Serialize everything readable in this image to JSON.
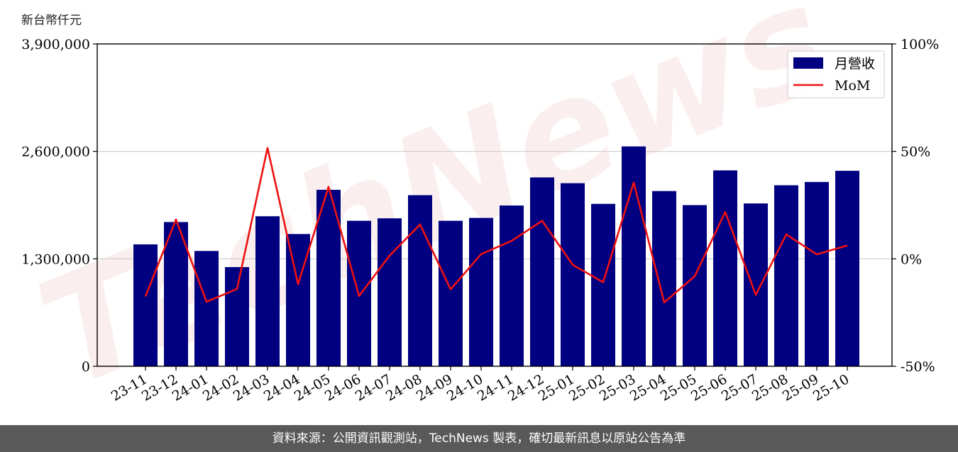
{
  "unit_label": "新台幣仟元",
  "footer_text": "資料來源：公開資訊觀測站，TechNews 製表，確切最新訊息以原站公告為準",
  "watermark_text": "TechNews",
  "colors": {
    "bar": "#000080",
    "line": "#ee1111",
    "grid": "#cccccc",
    "footer_bg": "#595959"
  },
  "chart_data": {
    "type": "bar",
    "title": "",
    "xlabel": "",
    "ylabel": "新台幣仟元",
    "categories": [
      "23-11",
      "23-12",
      "24-01",
      "24-02",
      "24-03",
      "24-04",
      "24-05",
      "24-06",
      "24-07",
      "24-08",
      "24-09",
      "24-10",
      "24-11",
      "24-12",
      "25-01",
      "25-02",
      "25-03",
      "25-04",
      "25-05",
      "25-06",
      "25-07",
      "25-08",
      "25-09",
      "25-10"
    ],
    "series": [
      {
        "name": "月營收",
        "type": "bar",
        "axis": "left",
        "values": [
          1475000,
          1745000,
          1395000,
          1200000,
          1815000,
          1600000,
          2135000,
          1760000,
          1790000,
          2070000,
          1760000,
          1795000,
          1945000,
          2285000,
          2215000,
          1965000,
          2660000,
          2120000,
          1950000,
          2370000,
          1970000,
          2190000,
          2230000,
          2365000
        ]
      },
      {
        "name": "MoM",
        "type": "line",
        "axis": "right",
        "values": [
          -17.5,
          18.3,
          -20.0,
          -14.0,
          51.6,
          -11.8,
          33.5,
          -17.3,
          1.5,
          16.0,
          -14.2,
          2.2,
          8.4,
          17.7,
          -2.8,
          -10.9,
          35.5,
          -20.3,
          -8.1,
          21.8,
          -16.8,
          11.4,
          2.1,
          6.2
        ]
      }
    ],
    "ylim": [
      0,
      3900000
    ],
    "yticks": [
      0,
      1300000,
      2600000,
      3900000
    ],
    "ytick_labels": [
      "0",
      "1,300,000",
      "2,600,000",
      "3,900,000"
    ],
    "y2lim": [
      -50,
      100
    ],
    "y2ticks": [
      -50,
      0,
      50,
      100
    ],
    "y2tick_labels": [
      "-50%",
      "0%",
      "50%",
      "100%"
    ],
    "grid": true,
    "legend": "top-right"
  }
}
